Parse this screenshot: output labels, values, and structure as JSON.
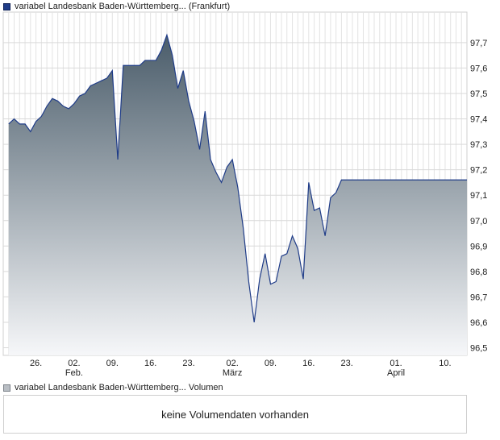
{
  "price_legend": {
    "label": "variabel Landesbank Baden-Württemberg... (Frankfurt)",
    "color": "#1f3c88"
  },
  "volume_legend": {
    "label": "variabel Landesbank Baden-Württemberg... Volumen",
    "color": "#b9bec4"
  },
  "volume_panel": {
    "message": "keine Volumendaten vorhanden"
  },
  "chart_data": {
    "type": "area",
    "title": "",
    "xlabel": "",
    "ylabel": "",
    "ylim": [
      96.47,
      97.82
    ],
    "yticks": [
      "96,5",
      "96,6",
      "96,7",
      "96,8",
      "96,9",
      "97,0",
      "97,1",
      "97,2",
      "97,3",
      "97,4",
      "97,5",
      "97,6",
      "97,7"
    ],
    "ytick_values": [
      96.5,
      96.6,
      96.7,
      96.8,
      96.9,
      97.0,
      97.1,
      97.2,
      97.3,
      97.4,
      97.5,
      97.6,
      97.7
    ],
    "xticks": [
      {
        "label": "26.",
        "sublabel": "",
        "date": "2024-01-26"
      },
      {
        "label": "02.",
        "sublabel": "Feb.",
        "date": "2024-02-02"
      },
      {
        "label": "09.",
        "sublabel": "",
        "date": "2024-02-09"
      },
      {
        "label": "16.",
        "sublabel": "",
        "date": "2024-02-16"
      },
      {
        "label": "23.",
        "sublabel": "",
        "date": "2024-02-23"
      },
      {
        "label": "02.",
        "sublabel": "März",
        "date": "2024-03-02"
      },
      {
        "label": "09.",
        "sublabel": "",
        "date": "2024-03-09"
      },
      {
        "label": "16.",
        "sublabel": "",
        "date": "2024-03-16"
      },
      {
        "label": "23.",
        "sublabel": "",
        "date": "2024-03-23"
      },
      {
        "label": "01.",
        "sublabel": "April",
        "date": "2024-04-01"
      },
      {
        "label": "10.",
        "sublabel": "",
        "date": "2024-04-10"
      }
    ],
    "grid": true,
    "fill_colors": {
      "top": "#4a5c6a",
      "bottom": "#f6f7f9"
    },
    "line_color": "#1f3c88",
    "series": [
      {
        "x": [
          "2024-01-21",
          "2024-01-22",
          "2024-01-23",
          "2024-01-24",
          "2024-01-25",
          "2024-01-26",
          "2024-01-27",
          "2024-01-28",
          "2024-01-29",
          "2024-01-30",
          "2024-01-31",
          "2024-02-01",
          "2024-02-02",
          "2024-02-03",
          "2024-02-04",
          "2024-02-05",
          "2024-02-06",
          "2024-02-07",
          "2024-02-08",
          "2024-02-09",
          "2024-02-10",
          "2024-02-11",
          "2024-02-12",
          "2024-02-13",
          "2024-02-14",
          "2024-02-15",
          "2024-02-16",
          "2024-02-17",
          "2024-02-18",
          "2024-02-19",
          "2024-02-20",
          "2024-02-21",
          "2024-02-22",
          "2024-02-23",
          "2024-02-24",
          "2024-02-25",
          "2024-02-26",
          "2024-02-27",
          "2024-02-28",
          "2024-02-29",
          "2024-03-01",
          "2024-03-02",
          "2024-03-03",
          "2024-03-04",
          "2024-03-05",
          "2024-03-06",
          "2024-03-07",
          "2024-03-08",
          "2024-03-09",
          "2024-03-10",
          "2024-03-11",
          "2024-03-12",
          "2024-03-13",
          "2024-03-14",
          "2024-03-15",
          "2024-03-16",
          "2024-03-17",
          "2024-03-18",
          "2024-03-19",
          "2024-03-20",
          "2024-03-21",
          "2024-03-22",
          "2024-03-23",
          "2024-03-24",
          "2024-03-25",
          "2024-03-26",
          "2024-03-27",
          "2024-03-28",
          "2024-03-29",
          "2024-03-30",
          "2024-03-31",
          "2024-04-01",
          "2024-04-02",
          "2024-04-03",
          "2024-04-04",
          "2024-04-05",
          "2024-04-06",
          "2024-04-07",
          "2024-04-08",
          "2024-04-09",
          "2024-04-10",
          "2024-04-11",
          "2024-04-12",
          "2024-04-13",
          "2024-04-14"
        ],
        "y": [
          97.38,
          97.4,
          97.38,
          97.38,
          97.35,
          97.39,
          97.41,
          97.45,
          97.48,
          97.47,
          97.45,
          97.44,
          97.46,
          97.49,
          97.5,
          97.53,
          97.54,
          97.55,
          97.56,
          97.59,
          97.24,
          97.61,
          97.61,
          97.61,
          97.61,
          97.63,
          97.63,
          97.63,
          97.67,
          97.73,
          97.65,
          97.52,
          97.59,
          97.47,
          97.39,
          97.28,
          97.43,
          97.24,
          97.19,
          97.15,
          97.21,
          97.24,
          97.13,
          96.97,
          96.76,
          96.6,
          96.77,
          96.87,
          96.75,
          96.76,
          96.86,
          96.87,
          96.94,
          96.89,
          96.77,
          97.15,
          97.04,
          97.05,
          96.94,
          97.09,
          97.11,
          97.16,
          97.16,
          97.16,
          97.16,
          97.16,
          97.16,
          97.16,
          97.16,
          97.16,
          97.16,
          97.16,
          97.16,
          97.16,
          97.16,
          97.16,
          97.16,
          97.16,
          97.16,
          97.16,
          97.16,
          97.16,
          97.16,
          97.16,
          97.16
        ]
      }
    ]
  }
}
